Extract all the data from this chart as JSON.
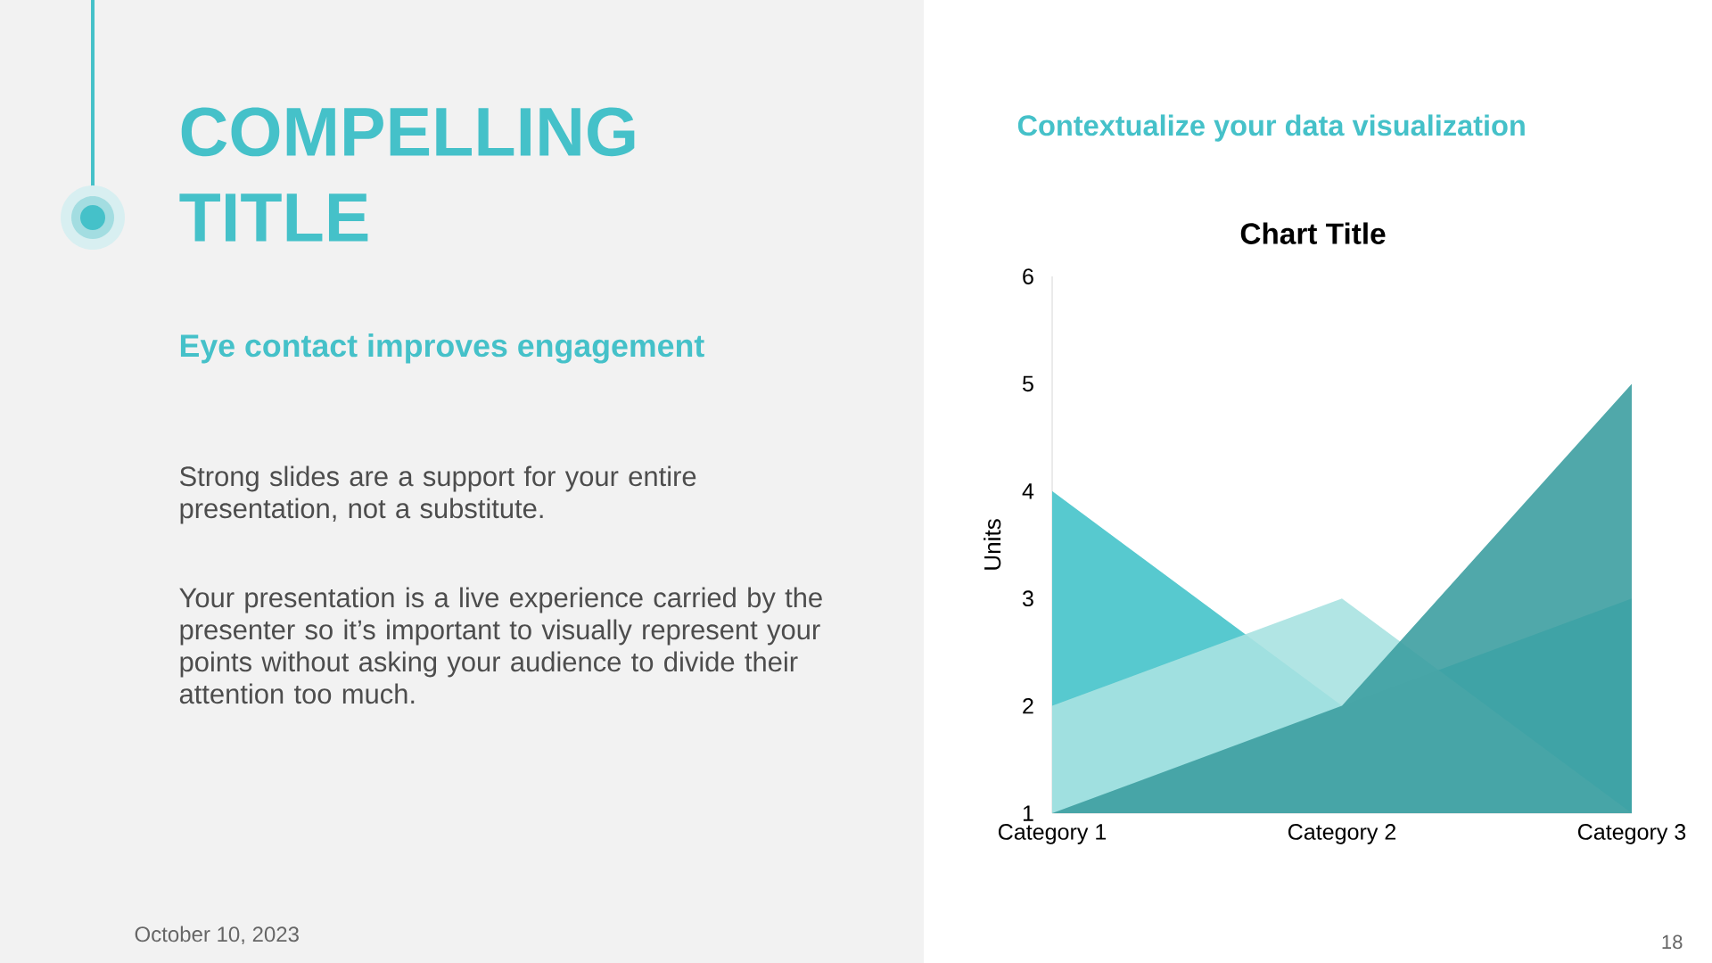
{
  "chart_data": {
    "type": "area",
    "title": "Chart Title",
    "subtitle": "Contextualize your data visualization",
    "ylabel": "Units",
    "annotations": [
      "COMPELLING TITLE",
      "Eye contact improves engagement",
      "Strong slides are a support for your entire presentation, not a substitute.",
      "Your presentation is a live experience carried by the presenter so it’s important to visually represent your points without asking your audience to divide their attention too much.",
      "October 10, 2023",
      "18"
    ],
    "categories": [
      "Category 1",
      "Category 2",
      "Category 3"
    ],
    "series": [
      {
        "color": "#45c3ca",
        "values": [
          4,
          2,
          3
        ]
      },
      {
        "color": "#a8e2e1",
        "values": [
          2,
          3,
          1
        ]
      },
      {
        "color": "#3d9fa1",
        "values": [
          1,
          2,
          5
        ]
      }
    ],
    "ylim": [
      1,
      6
    ],
    "yticks": [
      1,
      2,
      3,
      4,
      5,
      6
    ]
  }
}
